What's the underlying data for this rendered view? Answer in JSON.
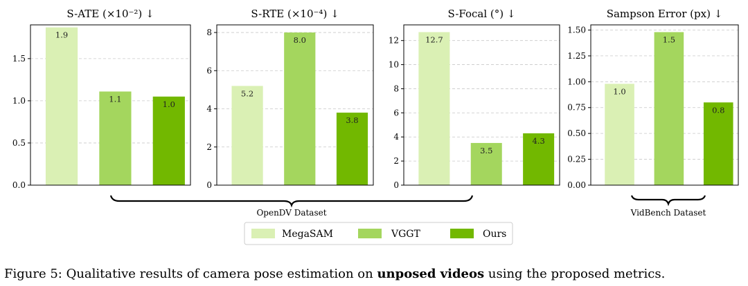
{
  "chart_data": [
    {
      "type": "bar",
      "title": "S-ATE (×10⁻²) ↓",
      "categories": [
        "MegaSAM",
        "VGGT",
        "Ours"
      ],
      "values": [
        1.87,
        1.11,
        1.05
      ],
      "value_labels": [
        "1.9",
        "1.1",
        "1.0"
      ],
      "ylim": [
        0,
        1.9
      ],
      "yticks": [
        0.0,
        0.5,
        1.0,
        1.5
      ],
      "ytick_labels": [
        "0.0",
        "0.5",
        "1.0",
        "1.5"
      ],
      "grid": true
    },
    {
      "type": "bar",
      "title": "S-RTE (×10⁻⁴) ↓",
      "categories": [
        "MegaSAM",
        "VGGT",
        "Ours"
      ],
      "values": [
        5.2,
        8.0,
        3.8
      ],
      "value_labels": [
        "5.2",
        "8.0",
        "3.8"
      ],
      "ylim": [
        0,
        8.4
      ],
      "yticks": [
        0,
        2,
        4,
        6,
        8
      ],
      "ytick_labels": [
        "0",
        "2",
        "4",
        "6",
        "8"
      ],
      "grid": true
    },
    {
      "type": "bar",
      "title": "S-Focal (°) ↓",
      "categories": [
        "MegaSAM",
        "VGGT",
        "Ours"
      ],
      "values": [
        12.7,
        3.5,
        4.3
      ],
      "value_labels": [
        "12.7",
        "3.5",
        "4.3"
      ],
      "ylim": [
        0,
        13.3
      ],
      "yticks": [
        0,
        2,
        4,
        6,
        8,
        10,
        12
      ],
      "ytick_labels": [
        "0",
        "2",
        "4",
        "6",
        "8",
        "10",
        "12"
      ],
      "grid": true
    },
    {
      "type": "bar",
      "title": "Sampson Error (px) ↓",
      "categories": [
        "MegaSAM",
        "VGGT",
        "Ours"
      ],
      "values": [
        0.98,
        1.48,
        0.8
      ],
      "value_labels": [
        "1.0",
        "1.5",
        "0.8"
      ],
      "ylim": [
        0,
        1.55
      ],
      "yticks": [
        0.0,
        0.25,
        0.5,
        0.75,
        1.0,
        1.25,
        1.5
      ],
      "ytick_labels": [
        "0.00",
        "0.25",
        "0.50",
        "0.75",
        "1.00",
        "1.25",
        "1.50"
      ],
      "grid": true
    }
  ],
  "groups": {
    "opendv_label": "OpenDV Dataset",
    "vidbench_label": "VidBench Dataset"
  },
  "legend": {
    "items": [
      {
        "name": "MegaSAM",
        "color": "#daf0b4"
      },
      {
        "name": "VGGT",
        "color": "#a4d65e"
      },
      {
        "name": "Ours",
        "color": "#72b800"
      }
    ]
  },
  "caption": {
    "prefix": "Figure 5: Qualitative results of camera pose estimation on ",
    "bold": "unposed videos",
    "suffix": " using the proposed metrics."
  }
}
